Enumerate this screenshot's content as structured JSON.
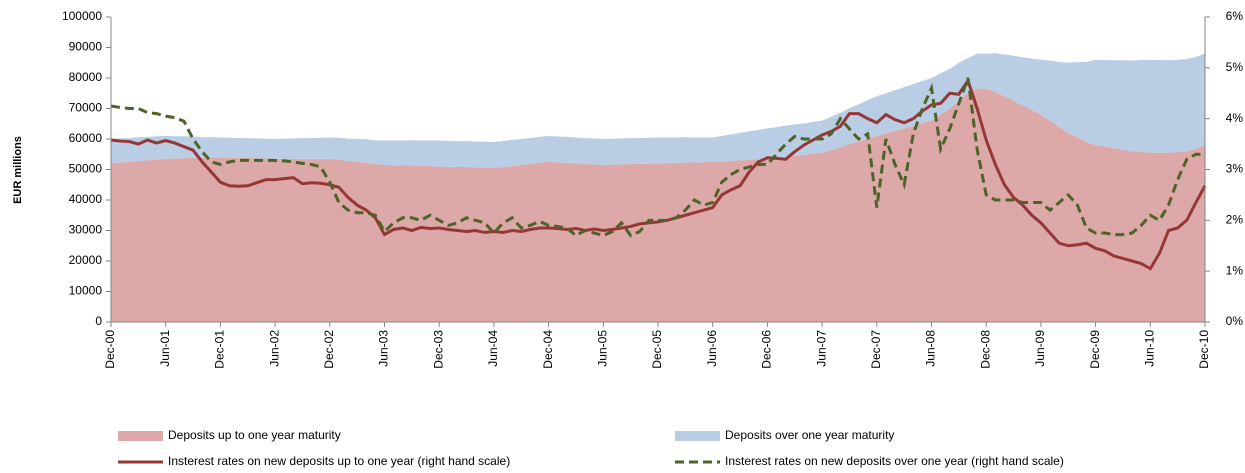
{
  "chart_data": {
    "type": "area",
    "ylabel": "EUR millions",
    "categories": [
      "Dec-00",
      null,
      null,
      null,
      null,
      null,
      "Jun-01",
      null,
      null,
      null,
      null,
      null,
      "Dec-01",
      null,
      null,
      null,
      null,
      null,
      "Jun-02",
      null,
      null,
      null,
      null,
      null,
      "Dec-02",
      null,
      null,
      null,
      null,
      null,
      "Jun-03",
      null,
      null,
      null,
      null,
      null,
      "Dec-03",
      null,
      null,
      null,
      null,
      null,
      "Jun-04",
      null,
      null,
      null,
      null,
      null,
      "Dec-04",
      null,
      null,
      null,
      null,
      null,
      "Jun-05",
      null,
      null,
      null,
      null,
      null,
      "Dec-05",
      null,
      null,
      null,
      null,
      null,
      "Jun-06",
      null,
      null,
      null,
      null,
      null,
      "Dec-06",
      null,
      null,
      null,
      null,
      null,
      "Jun-07",
      null,
      null,
      null,
      null,
      null,
      "Dec-07",
      null,
      null,
      null,
      null,
      null,
      "Jun-08",
      null,
      null,
      null,
      null,
      null,
      "Dec-08",
      null,
      null,
      null,
      null,
      null,
      "Jun-09",
      null,
      null,
      null,
      null,
      null,
      "Dec-09",
      null,
      null,
      null,
      null,
      null,
      "Jun-10",
      null,
      null,
      null,
      null,
      null,
      "Dec-10"
    ],
    "ylim": [
      0,
      100000
    ],
    "yticks": [
      0,
      10000,
      20000,
      30000,
      40000,
      50000,
      60000,
      70000,
      80000,
      90000,
      100000
    ],
    "y2lim": [
      0,
      6
    ],
    "y2ticks": [
      {
        "value": 0,
        "label": "0%"
      },
      {
        "value": 1,
        "label": "1%"
      },
      {
        "value": 2,
        "label": "2%"
      },
      {
        "value": 3,
        "label": "3%"
      },
      {
        "value": 4,
        "label": "4%"
      },
      {
        "value": 5,
        "label": "5%"
      },
      {
        "value": 6,
        "label": "6%"
      }
    ],
    "stacked": true,
    "legend": "bottom",
    "series": [
      {
        "name": "Deposits up to one year maturity",
        "type": "area",
        "color": "#dca9a8",
        "values": [
          52000,
          52300,
          52500,
          52800,
          53000,
          53300,
          53500,
          53600,
          53700,
          53800,
          53800,
          53900,
          54000,
          53900,
          53800,
          53800,
          53700,
          53600,
          53500,
          53500,
          53500,
          53500,
          53500,
          53500,
          53500,
          53200,
          52800,
          52500,
          52200,
          51800,
          51500,
          51400,
          51300,
          51300,
          51200,
          51100,
          51000,
          50900,
          50800,
          50800,
          50700,
          50600,
          50500,
          50800,
          51200,
          51500,
          51800,
          52200,
          52500,
          52300,
          52200,
          52000,
          51800,
          51700,
          51500,
          51600,
          51700,
          51800,
          51800,
          51900,
          52000,
          52100,
          52200,
          52300,
          52300,
          52400,
          52500,
          52700,
          52800,
          53000,
          53200,
          53300,
          53500,
          53800,
          54200,
          54500,
          54800,
          55200,
          55500,
          56400,
          57300,
          58300,
          59200,
          60100,
          61000,
          61800,
          62700,
          63500,
          64300,
          65200,
          66000,
          68000,
          70000,
          72500,
          75000,
          76500,
          76500,
          75500,
          74000,
          72500,
          71000,
          69500,
          68000,
          66000,
          64000,
          62000,
          60500,
          59000,
          58000,
          57500,
          57000,
          56500,
          56000,
          55800,
          55500,
          55500,
          55500,
          55700,
          56000,
          56800,
          58000
        ]
      },
      {
        "name": "Deposits over one year maturity",
        "type": "area",
        "color": "#b9cde5",
        "values": [
          8000,
          7900,
          7800,
          7800,
          7700,
          7600,
          7500,
          7300,
          7200,
          7000,
          6800,
          6700,
          6500,
          6500,
          6500,
          6500,
          6500,
          6500,
          6500,
          6600,
          6700,
          6800,
          6800,
          6900,
          7000,
          7200,
          7300,
          7500,
          7700,
          7800,
          8000,
          8100,
          8200,
          8300,
          8300,
          8400,
          8500,
          8500,
          8500,
          8500,
          8500,
          8500,
          8500,
          8500,
          8500,
          8500,
          8500,
          8500,
          8500,
          8500,
          8500,
          8500,
          8500,
          8500,
          8500,
          8500,
          8500,
          8500,
          8500,
          8500,
          8500,
          8400,
          8300,
          8300,
          8200,
          8100,
          8000,
          8300,
          8700,
          9000,
          9300,
          9700,
          10000,
          10100,
          10200,
          10300,
          10300,
          10400,
          10500,
          10900,
          11300,
          11800,
          12200,
          12600,
          13000,
          13200,
          13300,
          13500,
          13700,
          13800,
          14000,
          13500,
          13000,
          12500,
          11500,
          11500,
          11500,
          12600,
          13700,
          14800,
          15800,
          16900,
          18000,
          19700,
          21300,
          23000,
          24700,
          26300,
          28000,
          28400,
          28800,
          29300,
          29700,
          30100,
          30500,
          30400,
          30300,
          30300,
          30200,
          30100,
          30000
        ]
      },
      {
        "name": "Insterest rates on new deposits up to one year (right hand scale)",
        "type": "line",
        "axis": "y2",
        "color": "#953735",
        "linestyle": "solid",
        "values": [
          3.58,
          3.56,
          3.55,
          3.5,
          3.58,
          3.52,
          3.57,
          3.52,
          3.45,
          3.38,
          3.15,
          2.95,
          2.75,
          2.68,
          2.67,
          2.68,
          2.74,
          2.8,
          2.8,
          2.82,
          2.84,
          2.72,
          2.74,
          2.73,
          2.7,
          2.65,
          2.45,
          2.3,
          2.2,
          2.05,
          1.72,
          1.82,
          1.85,
          1.8,
          1.86,
          1.84,
          1.85,
          1.82,
          1.8,
          1.78,
          1.8,
          1.76,
          1.78,
          1.76,
          1.8,
          1.78,
          1.82,
          1.85,
          1.85,
          1.84,
          1.82,
          1.84,
          1.8,
          1.83,
          1.8,
          1.82,
          1.85,
          1.88,
          1.93,
          1.95,
          1.97,
          2.0,
          2.05,
          2.1,
          2.15,
          2.2,
          2.25,
          2.5,
          2.6,
          2.68,
          2.95,
          3.15,
          3.23,
          3.22,
          3.2,
          3.35,
          3.48,
          3.58,
          3.68,
          3.75,
          3.85,
          4.1,
          4.1,
          4.0,
          3.92,
          4.08,
          3.98,
          3.92,
          4.0,
          4.15,
          4.27,
          4.3,
          4.5,
          4.48,
          4.75,
          4.2,
          3.58,
          3.1,
          2.7,
          2.45,
          2.3,
          2.1,
          1.95,
          1.75,
          1.55,
          1.5,
          1.52,
          1.55,
          1.45,
          1.4,
          1.3,
          1.25,
          1.2,
          1.15,
          1.05,
          1.35,
          1.8,
          1.85,
          2.0,
          2.35,
          2.68
        ]
      },
      {
        "name": "Insterest rates on new deposits over one year (right hand scale)",
        "type": "line",
        "axis": "y2",
        "color": "#4f6228",
        "linestyle": "dashed",
        "values": [
          4.25,
          4.22,
          4.2,
          4.2,
          4.12,
          4.1,
          4.05,
          4.02,
          3.95,
          3.6,
          3.35,
          3.15,
          3.1,
          3.15,
          3.18,
          3.18,
          3.18,
          3.18,
          3.18,
          3.17,
          3.15,
          3.12,
          3.1,
          3.05,
          2.75,
          2.35,
          2.2,
          2.15,
          2.15,
          2.1,
          1.78,
          1.95,
          2.05,
          2.05,
          2.0,
          2.1,
          2.0,
          1.9,
          1.95,
          2.05,
          2.0,
          1.95,
          1.75,
          1.95,
          2.05,
          1.85,
          1.9,
          1.98,
          1.9,
          1.88,
          1.85,
          1.7,
          1.8,
          1.75,
          1.7,
          1.78,
          1.95,
          1.7,
          1.78,
          2.0,
          2.0,
          2.0,
          2.05,
          2.2,
          2.4,
          2.3,
          2.35,
          2.75,
          2.9,
          3.0,
          3.05,
          3.1,
          3.1,
          3.3,
          3.5,
          3.65,
          3.6,
          3.6,
          3.6,
          3.7,
          4.0,
          3.8,
          3.6,
          3.7,
          2.25,
          3.6,
          3.1,
          2.7,
          3.7,
          4.2,
          4.6,
          3.4,
          3.8,
          4.3,
          4.8,
          3.4,
          2.5,
          2.4,
          2.4,
          2.4,
          2.35,
          2.35,
          2.35,
          2.2,
          2.35,
          2.5,
          2.3,
          1.85,
          1.75,
          1.75,
          1.72,
          1.72,
          1.75,
          1.9,
          2.1,
          2.0,
          2.3,
          2.8,
          3.2,
          3.3,
          3.3
        ]
      }
    ]
  }
}
